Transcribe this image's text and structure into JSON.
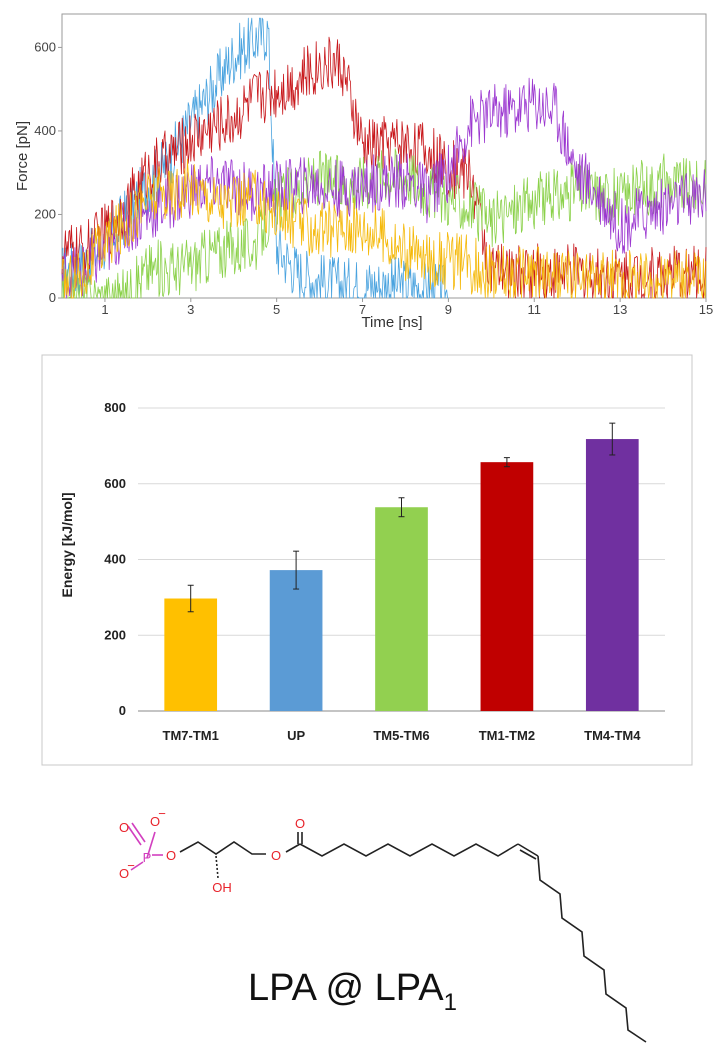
{
  "chart_data": [
    {
      "type": "line",
      "xlabel": "Time [ns]",
      "ylabel": "Force [pN]",
      "xlim": [
        0,
        15
      ],
      "ylim": [
        0,
        680
      ],
      "xticks": [
        1,
        3,
        5,
        7,
        9,
        11,
        13,
        15
      ],
      "yticks": [
        0,
        200,
        400,
        600
      ],
      "grid": false,
      "series": [
        {
          "color": "#4aa3df",
          "x": [
            0,
            0.5,
            1,
            1.5,
            2,
            2.5,
            3,
            3.5,
            4,
            4.5,
            4.8,
            5,
            5.5,
            6,
            6.5,
            7,
            7.5,
            8,
            8.5,
            9
          ],
          "y": [
            60,
            80,
            130,
            200,
            270,
            330,
            420,
            500,
            580,
            620,
            640,
            120,
            60,
            40,
            30,
            30,
            30,
            30,
            20,
            10
          ]
        },
        {
          "color": "#c8171b",
          "x": [
            0,
            0.5,
            1,
            1.5,
            2,
            2.5,
            3,
            3.5,
            4,
            4.5,
            5,
            5.5,
            6,
            6.5,
            7,
            7.5,
            8,
            8.5,
            9,
            9.5,
            10,
            10.5,
            11,
            11.5,
            12,
            12.5,
            13,
            13.5,
            14,
            14.5,
            15
          ],
          "y": [
            110,
            110,
            160,
            220,
            300,
            340,
            380,
            410,
            430,
            480,
            500,
            520,
            560,
            560,
            360,
            370,
            370,
            350,
            310,
            300,
            60,
            60,
            60,
            60,
            60,
            55,
            55,
            55,
            55,
            55,
            55
          ]
        },
        {
          "color": "#8bd14a",
          "x": [
            0,
            0.5,
            1,
            1.5,
            2,
            2.5,
            3,
            3.5,
            4,
            4.5,
            5,
            5.5,
            6,
            6.5,
            7,
            7.5,
            8,
            8.5,
            9,
            9.5,
            10,
            10.5,
            11,
            11.5,
            12,
            12.5,
            13,
            13.5,
            14,
            14.5,
            15
          ],
          "y": [
            0,
            0,
            0,
            0,
            70,
            70,
            80,
            110,
            120,
            130,
            230,
            260,
            290,
            270,
            280,
            300,
            300,
            260,
            240,
            220,
            180,
            210,
            230,
            240,
            260,
            250,
            240,
            260,
            280,
            270,
            260
          ]
        },
        {
          "color": "#9b37d0",
          "x": [
            0,
            0.5,
            1,
            1.5,
            2,
            2.5,
            3,
            3.5,
            4,
            4.5,
            5,
            5.5,
            6,
            6.5,
            7,
            7.5,
            8,
            8.5,
            9,
            9.5,
            10,
            10.5,
            11,
            11.5,
            12,
            12.5,
            13,
            13.5,
            14,
            14.5,
            15
          ],
          "y": [
            50,
            60,
            110,
            170,
            200,
            230,
            260,
            270,
            270,
            250,
            260,
            270,
            270,
            260,
            270,
            280,
            280,
            250,
            300,
            420,
            440,
            450,
            470,
            450,
            300,
            250,
            170,
            200,
            220,
            230,
            250
          ]
        },
        {
          "color": "#f5b90a",
          "x": [
            0,
            0.5,
            1,
            1.5,
            2,
            2.5,
            3,
            3.5,
            4,
            4.5,
            5,
            5.5,
            6,
            6.5,
            7,
            7.5,
            8,
            8.5,
            9,
            9.5,
            10,
            10.5,
            11,
            11.5,
            12,
            12.5,
            13,
            13.5,
            14,
            14.5,
            15
          ],
          "y": [
            30,
            60,
            130,
            180,
            240,
            250,
            270,
            240,
            220,
            240,
            200,
            180,
            160,
            170,
            170,
            150,
            110,
            90,
            90,
            80,
            60,
            55,
            60,
            50,
            50,
            45,
            45,
            45,
            45,
            45,
            45
          ]
        }
      ]
    },
    {
      "type": "bar",
      "ylabel": "Energy  [kJ/mol]",
      "categories": [
        "TM7-TM1",
        "UP",
        "TM5-TM6",
        "TM1-TM2",
        "TM4-TM4"
      ],
      "values": [
        297,
        372,
        538,
        657,
        718
      ],
      "errors": [
        35,
        50,
        25,
        12,
        42
      ],
      "colors": [
        "#ffc000",
        "#5b9bd5",
        "#92d050",
        "#c00000",
        "#7030a0"
      ],
      "ylim": [
        0,
        800
      ],
      "yticks": [
        0,
        200,
        400,
        600,
        800
      ],
      "grid": true
    }
  ],
  "molecule": {
    "atoms": {
      "o_minus_top": "O",
      "o_double_left": "O",
      "phosphorus": "P",
      "o_minus_bottom": "O",
      "o_ester_1": "O",
      "oh": "OH",
      "o_ester_2": "O",
      "o_carbonyl": "O"
    },
    "charge_symbol": "−",
    "caption": {
      "main": "LPA @ LPA",
      "subscript": "1"
    }
  },
  "colors": {
    "red_atom": "#e8232b",
    "phosphorus": "#d23fbf",
    "bond": "#222222"
  }
}
